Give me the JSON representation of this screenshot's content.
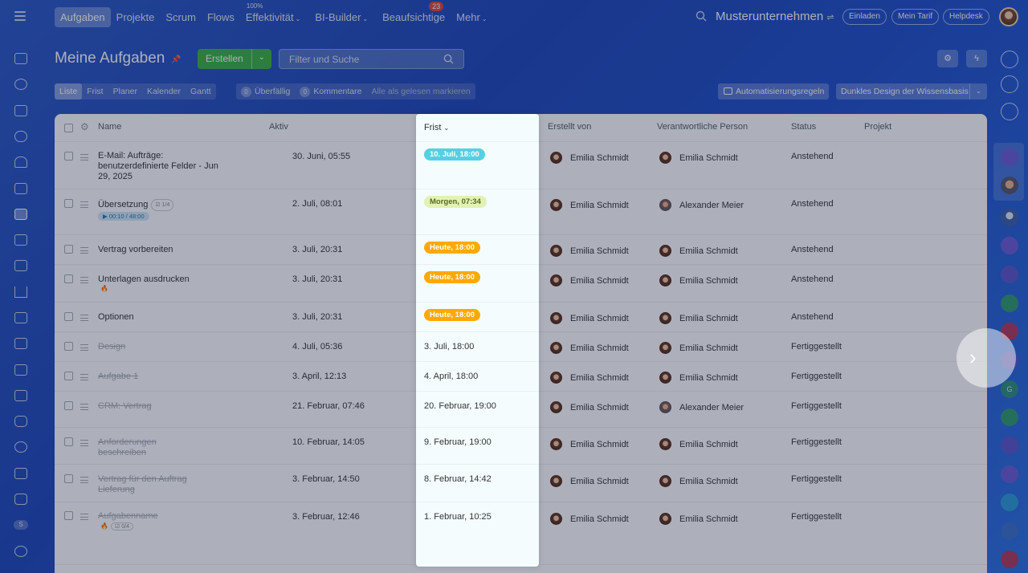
{
  "topbar": {
    "nav": [
      {
        "label": "Aufgaben",
        "active": true
      },
      {
        "label": "Projekte"
      },
      {
        "label": "Scrum"
      },
      {
        "label": "Flows"
      },
      {
        "label": "Effektivität",
        "sup": "100%",
        "dropdown": true
      },
      {
        "label": "BI-Builder",
        "dropdown": true
      },
      {
        "label": "Beaufsichtige",
        "badge": "23"
      },
      {
        "label": "Mehr",
        "dropdown": true
      }
    ],
    "company": "Musterunternehmen",
    "buttons": {
      "invite": "Einladen",
      "plan": "Mein Tarif",
      "help": "Helpdesk"
    }
  },
  "page": {
    "title": "Meine Aufgaben",
    "create_label": "Erstellen",
    "search_placeholder": "Filter und Suche"
  },
  "views": [
    "Liste",
    "Frist",
    "Planer",
    "Kalender",
    "Gantt"
  ],
  "counters": {
    "overdue_count": "0",
    "overdue_label": "Überfällig",
    "comments_count": "0",
    "comments_label": "Kommentare",
    "mark_read": "Alle als gelesen markieren"
  },
  "toolbar": {
    "automation": "Automatisierungsregeln",
    "theme": "Dunkles Design der Wissensbasis"
  },
  "table": {
    "headers": {
      "name": "Name",
      "active": "Aktiv",
      "deadline": "Frist",
      "created_by": "Erstellt von",
      "responsible": "Verantwortliche Person",
      "status": "Status",
      "project": "Projekt"
    },
    "rows": [
      {
        "name": "E-Mail: Aufträge: benutzerdefinierte Felder - Jun 29, 2025",
        "active": "30. Juni, 05:55",
        "deadline": "10. Juli, 18:00",
        "deadline_style": "blue",
        "created_by": "Emilia Schmidt",
        "responsible": "Emilia Schmidt",
        "status": "Anstehend"
      },
      {
        "name": "Übersetzung",
        "subtasks": "1/4",
        "timer": "00:10 / 48:00",
        "active": "2. Juli, 08:01",
        "deadline": "Morgen, 07:34",
        "deadline_style": "lime",
        "created_by": "Emilia Schmidt",
        "responsible": "Alexander Meier",
        "status": "Anstehend"
      },
      {
        "name": "Vertrag vorbereiten",
        "active": "3. Juli, 20:31",
        "deadline": "Heute, 18:00",
        "deadline_style": "orange",
        "created_by": "Emilia Schmidt",
        "responsible": "Emilia Schmidt",
        "status": "Anstehend"
      },
      {
        "name": "Unterlagen ausdrucken",
        "fire": true,
        "active": "3. Juli, 20:31",
        "deadline": "Heute, 18:00",
        "deadline_style": "orange",
        "created_by": "Emilia Schmidt",
        "responsible": "Emilia Schmidt",
        "status": "Anstehend"
      },
      {
        "name": "Optionen",
        "active": "3. Juli, 20:31",
        "deadline": "Heute, 18:00",
        "deadline_style": "orange",
        "created_by": "Emilia Schmidt",
        "responsible": "Emilia Schmidt",
        "status": "Anstehend"
      },
      {
        "name": "Design",
        "done": true,
        "active": "4. Juli, 05:36",
        "deadline": "3. Juli, 18:00",
        "created_by": "Emilia Schmidt",
        "responsible": "Emilia Schmidt",
        "status": "Fertiggestellt"
      },
      {
        "name": "Aufgabe 1",
        "done": true,
        "active": "3. April, 12:13",
        "deadline": "4. April, 18:00",
        "created_by": "Emilia Schmidt",
        "responsible": "Emilia Schmidt",
        "status": "Fertiggestellt"
      },
      {
        "name": "CRM: Vertrag",
        "done": true,
        "active": "21. Februar, 07:46",
        "deadline": "20. Februar, 19:00",
        "created_by": "Emilia Schmidt",
        "responsible": "Alexander Meier",
        "status": "Fertiggestellt"
      },
      {
        "name": "Anforderungen beschreiben",
        "done": true,
        "active": "10. Februar, 14:05",
        "deadline": "9. Februar, 19:00",
        "created_by": "Emilia Schmidt",
        "responsible": "Emilia Schmidt",
        "status": "Fertiggestellt"
      },
      {
        "name": "Vertrag für den Auftrag Lieferung",
        "done": true,
        "active": "3. Februar, 14:50",
        "deadline": "8. Februar, 14:42",
        "created_by": "Emilia Schmidt",
        "responsible": "Emilia Schmidt",
        "status": "Fertiggestellt"
      },
      {
        "name": "Aufgabenname",
        "done": true,
        "fire": true,
        "subtasks": "0/4",
        "active": "3. Februar, 12:46",
        "deadline": "1. Februar, 10:25",
        "created_by": "Emilia Schmidt",
        "responsible": "Emilia Schmidt",
        "status": "Fertiggestellt"
      }
    ]
  },
  "left_sidebar": {
    "user_initial": "S"
  },
  "right_sidebar": {
    "user_initial": "G"
  },
  "colors": {
    "accent": "#3bb340",
    "deadline_blue": "#55d0e0",
    "deadline_orange": "#ffa900",
    "deadline_lime": "#e2f1b4"
  }
}
